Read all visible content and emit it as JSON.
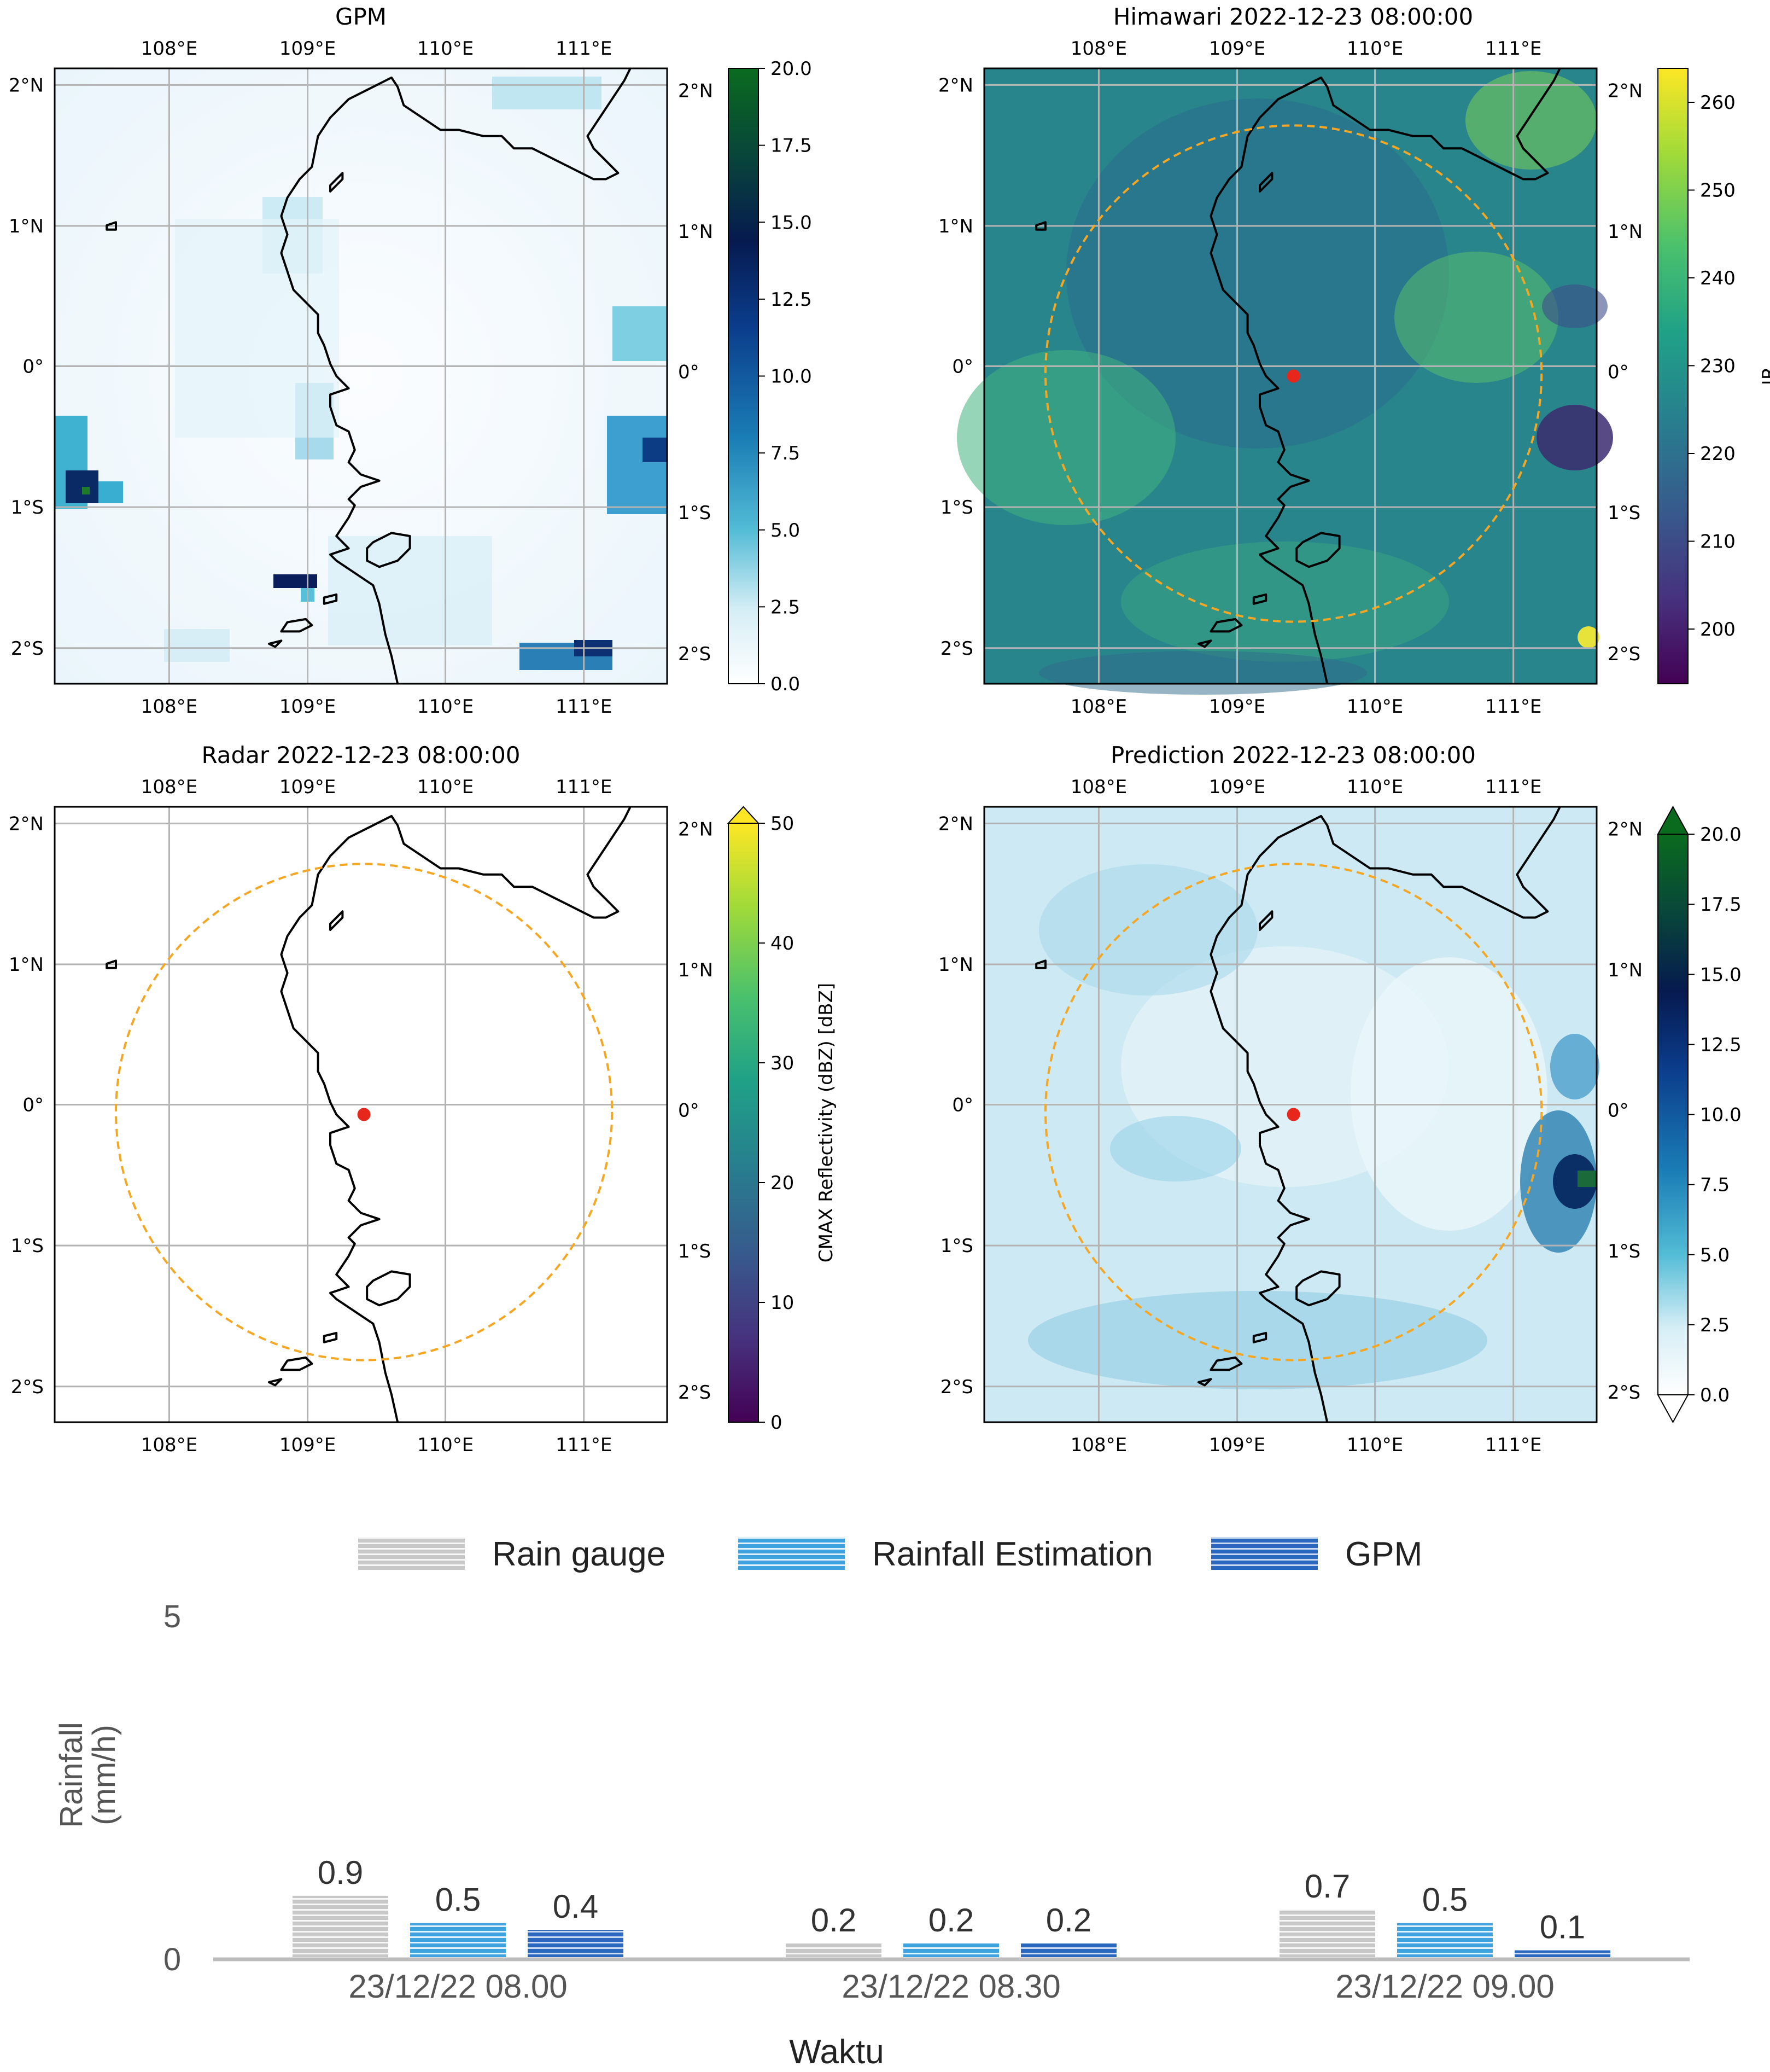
{
  "panels": [
    {
      "title": "GPM",
      "lon_ticks": [
        "108°E",
        "109°E",
        "110°E",
        "111°E"
      ],
      "lat_ticks": [
        "2°N",
        "1°N",
        "0°",
        "1°S",
        "2°S"
      ],
      "colorbar": {
        "ticks": [
          "20.0",
          "17.5",
          "15.0",
          "12.5",
          "10.0",
          "7.5",
          "5.0",
          "2.5",
          "0.0"
        ],
        "label": "",
        "colormap": "white-blue-green"
      },
      "overlays": {
        "radar_circle": false,
        "site_marker": false
      }
    },
    {
      "title": "Himawari 2022-12-23 08:00:00",
      "lon_ticks": [
        "108°E",
        "109°E",
        "110°E",
        "111°E"
      ],
      "lat_ticks": [
        "2°N",
        "1°N",
        "0°",
        "1°S",
        "2°S"
      ],
      "colorbar": {
        "ticks": [
          "260",
          "250",
          "240",
          "230",
          "220",
          "210",
          "200"
        ],
        "label": "IR",
        "colormap": "viridis"
      },
      "overlays": {
        "radar_circle": true,
        "site_marker": true
      }
    },
    {
      "title": "Radar 2022-12-23 08:00:00",
      "lon_ticks": [
        "108°E",
        "109°E",
        "110°E",
        "111°E"
      ],
      "lat_ticks": [
        "2°N",
        "1°N",
        "0°",
        "1°S",
        "2°S"
      ],
      "colorbar": {
        "ticks": [
          "50",
          "40",
          "30",
          "20",
          "10",
          "0"
        ],
        "label": "CMAX Reflectivity (dBZ) [dBZ]",
        "colormap": "viridis"
      },
      "overlays": {
        "radar_circle": true,
        "site_marker": true
      }
    },
    {
      "title": "Prediction 2022-12-23 08:00:00",
      "lon_ticks": [
        "108°E",
        "109°E",
        "110°E",
        "111°E"
      ],
      "lat_ticks": [
        "2°N",
        "1°N",
        "0°",
        "1°S",
        "2°S"
      ],
      "colorbar": {
        "ticks": [
          "20.0",
          "17.5",
          "15.0",
          "12.5",
          "10.0",
          "7.5",
          "5.0",
          "2.5",
          "0.0"
        ],
        "label": "",
        "colormap": "white-blue-green"
      },
      "overlays": {
        "radar_circle": true,
        "site_marker": true
      }
    }
  ],
  "chart_data": {
    "type": "bar",
    "categories": [
      "23/12/22 08.00",
      "23/12/22 08.30",
      "23/12/22 09.00"
    ],
    "series": [
      {
        "name": "Rain gauge",
        "values": [
          0.9,
          0.2,
          0.7
        ],
        "color": "#b8b8b8"
      },
      {
        "name": "Rainfall Estimation",
        "values": [
          0.5,
          0.2,
          0.5
        ],
        "color": "#4aa8e0"
      },
      {
        "name": "GPM",
        "values": [
          0.4,
          0.2,
          0.1
        ],
        "color": "#2f6fc4"
      }
    ],
    "data_labels": [
      [
        "0.9",
        "0.5",
        "0.4"
      ],
      [
        "0.2",
        "0.2",
        "0.2"
      ],
      [
        "0.7",
        "0.5",
        "0.1"
      ]
    ],
    "xlabel": "Waktu",
    "ylabel": "Rainfall (mm/h)",
    "ylabel_lines": [
      "Rainfall",
      "(mm/h)"
    ],
    "yticks": [
      "5",
      "0"
    ],
    "ylim": [
      0,
      5
    ],
    "legend_position": "top"
  },
  "colors": {
    "radar_circle": "#f5a623",
    "site_marker": "#e8271c",
    "coastline": "#000000",
    "grid": "#b3b3b3"
  }
}
